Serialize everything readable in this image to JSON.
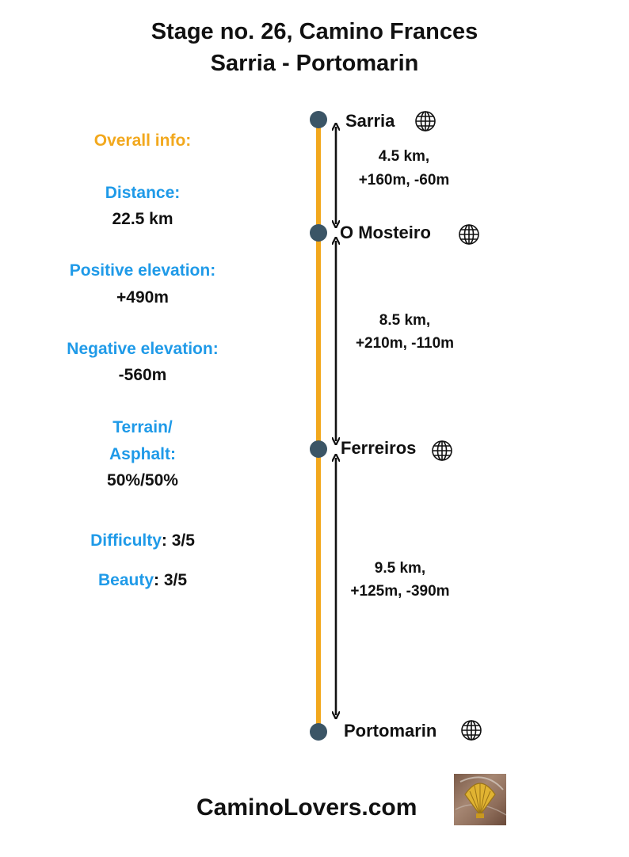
{
  "header": {
    "title_line1": "Stage no. 26, Camino Frances",
    "title_line2": "Sarria - Portomarin"
  },
  "info": {
    "overall_label": "Overall info:",
    "distance_label": "Distance:",
    "distance_value": "22.5 km",
    "positive_label": "Positive elevation:",
    "positive_value": "+490m",
    "negative_label": "Negative elevation:",
    "negative_value": "-560m",
    "terrain_label_1": "Terrain/",
    "terrain_label_2": "Asphalt:",
    "terrain_value": "50%/50%",
    "difficulty_label": "Difficulty",
    "difficulty_value": ": 3/5",
    "beauty_label": "Beauty",
    "beauty_value": ": 3/5"
  },
  "stops": [
    {
      "name": "Sarria",
      "icon": "globe-icon"
    },
    {
      "name": "O Mosteiro",
      "icon": "globe-icon"
    },
    {
      "name": "Ferreiros",
      "icon": "globe-icon"
    },
    {
      "name": "Portomarin",
      "icon": "globe-icon"
    }
  ],
  "segments": [
    {
      "distance": "4.5 km,",
      "elevation": "+160m, -60m"
    },
    {
      "distance": "8.5 km,",
      "elevation": "+210m, -110m"
    },
    {
      "distance": "9.5 km,",
      "elevation": "+125m, -390m"
    }
  ],
  "footer": {
    "site": "CaminoLovers.com",
    "logo_icon": "scallop-shell-icon"
  },
  "colors": {
    "route_line": "#f2a81d",
    "stop_dot": "#3b5566",
    "label_blue": "#1f9ae8",
    "label_orange": "#f2a81d"
  }
}
